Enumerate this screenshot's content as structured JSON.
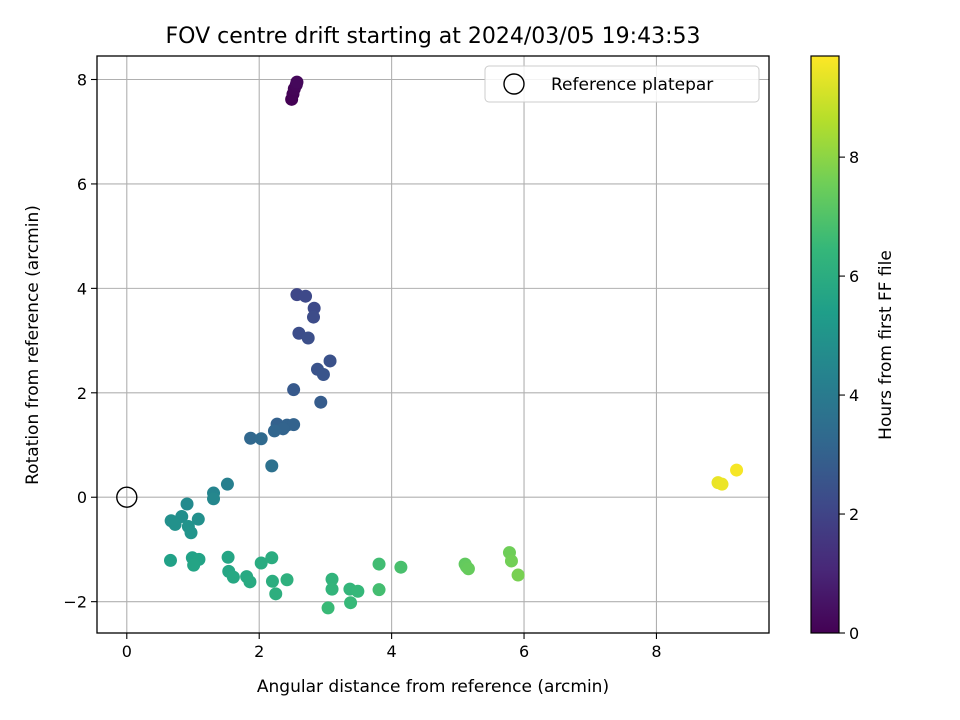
{
  "chart_data": {
    "type": "scatter",
    "title": "FOV centre drift starting at 2024/03/05 19:43:53",
    "xlabel": "Angular distance from reference (arcmin)",
    "ylabel": "Rotation from reference (arcmin)",
    "xlim": [
      -0.45,
      9.7
    ],
    "ylim": [
      -2.6,
      8.45
    ],
    "xticks": [
      0,
      2,
      4,
      6,
      8
    ],
    "yticks": [
      -2,
      0,
      2,
      4,
      6,
      8
    ],
    "xtick_labels": [
      "0",
      "2",
      "4",
      "6",
      "8"
    ],
    "ytick_labels": [
      "−2",
      "0",
      "2",
      "4",
      "6",
      "8"
    ],
    "grid": true,
    "legend": {
      "position": "top-right",
      "entries": [
        "Reference platepar"
      ]
    },
    "reference_point": {
      "x": 0,
      "y": 0,
      "label": "Reference platepar"
    },
    "colorbar": {
      "label": "Hours from first FF file",
      "range": [
        0,
        9.7
      ],
      "ticks": [
        0,
        2,
        4,
        6,
        8
      ],
      "tick_labels": [
        "0",
        "2",
        "4",
        "6",
        "8"
      ],
      "colormap": "viridis",
      "colors": [
        "#440154",
        "#482878",
        "#3e4989",
        "#31688e",
        "#26828e",
        "#1f9e89",
        "#35b779",
        "#6ece58",
        "#b5de2b",
        "#fde725"
      ]
    },
    "points": [
      {
        "x": 2.49,
        "y": 7.62,
        "h": 0.0
      },
      {
        "x": 2.51,
        "y": 7.72,
        "h": 0.05
      },
      {
        "x": 2.53,
        "y": 7.82,
        "h": 0.1
      },
      {
        "x": 2.56,
        "y": 7.9,
        "h": 0.15
      },
      {
        "x": 2.57,
        "y": 7.95,
        "h": 0.2
      },
      {
        "x": 2.57,
        "y": 3.88,
        "h": 2.1
      },
      {
        "x": 2.7,
        "y": 3.85,
        "h": 2.15
      },
      {
        "x": 2.83,
        "y": 3.62,
        "h": 2.2
      },
      {
        "x": 2.82,
        "y": 3.45,
        "h": 2.25
      },
      {
        "x": 2.6,
        "y": 3.14,
        "h": 2.3
      },
      {
        "x": 2.74,
        "y": 3.05,
        "h": 2.35
      },
      {
        "x": 3.07,
        "y": 2.61,
        "h": 2.45
      },
      {
        "x": 2.88,
        "y": 2.45,
        "h": 2.5
      },
      {
        "x": 2.97,
        "y": 2.35,
        "h": 2.55
      },
      {
        "x": 2.52,
        "y": 2.06,
        "h": 2.7
      },
      {
        "x": 2.93,
        "y": 1.82,
        "h": 2.8
      },
      {
        "x": 2.27,
        "y": 1.4,
        "h": 3.0
      },
      {
        "x": 2.42,
        "y": 1.38,
        "h": 3.05
      },
      {
        "x": 2.52,
        "y": 1.39,
        "h": 3.05
      },
      {
        "x": 2.36,
        "y": 1.31,
        "h": 3.1
      },
      {
        "x": 2.23,
        "y": 1.27,
        "h": 3.15
      },
      {
        "x": 1.87,
        "y": 1.13,
        "h": 3.25
      },
      {
        "x": 2.03,
        "y": 1.12,
        "h": 3.3
      },
      {
        "x": 2.19,
        "y": 0.6,
        "h": 3.6
      },
      {
        "x": 1.52,
        "y": 0.25,
        "h": 4.2
      },
      {
        "x": 1.31,
        "y": 0.08,
        "h": 4.4
      },
      {
        "x": 1.31,
        "y": -0.03,
        "h": 4.5
      },
      {
        "x": 0.91,
        "y": -0.13,
        "h": 4.6
      },
      {
        "x": 0.83,
        "y": -0.37,
        "h": 4.8
      },
      {
        "x": 1.08,
        "y": -0.42,
        "h": 4.85
      },
      {
        "x": 0.67,
        "y": -0.45,
        "h": 4.85
      },
      {
        "x": 0.73,
        "y": -0.52,
        "h": 4.9
      },
      {
        "x": 0.93,
        "y": -0.56,
        "h": 4.95
      },
      {
        "x": 0.97,
        "y": -0.68,
        "h": 5.0
      },
      {
        "x": 0.66,
        "y": -1.21,
        "h": 5.5
      },
      {
        "x": 0.99,
        "y": -1.16,
        "h": 5.55
      },
      {
        "x": 1.09,
        "y": -1.19,
        "h": 5.6
      },
      {
        "x": 1.01,
        "y": -1.3,
        "h": 5.65
      },
      {
        "x": 1.53,
        "y": -1.15,
        "h": 5.7
      },
      {
        "x": 1.54,
        "y": -1.42,
        "h": 5.75
      },
      {
        "x": 1.61,
        "y": -1.53,
        "h": 5.8
      },
      {
        "x": 1.81,
        "y": -1.52,
        "h": 5.85
      },
      {
        "x": 1.86,
        "y": -1.62,
        "h": 5.9
      },
      {
        "x": 2.03,
        "y": -1.26,
        "h": 5.95
      },
      {
        "x": 2.19,
        "y": -1.16,
        "h": 6.0
      },
      {
        "x": 2.2,
        "y": -1.61,
        "h": 6.05
      },
      {
        "x": 2.25,
        "y": -1.85,
        "h": 6.1
      },
      {
        "x": 2.42,
        "y": -1.58,
        "h": 6.15
      },
      {
        "x": 3.1,
        "y": -1.57,
        "h": 6.3
      },
      {
        "x": 3.1,
        "y": -1.76,
        "h": 6.35
      },
      {
        "x": 3.37,
        "y": -1.76,
        "h": 6.4
      },
      {
        "x": 3.49,
        "y": -1.8,
        "h": 6.45
      },
      {
        "x": 3.38,
        "y": -2.02,
        "h": 6.5
      },
      {
        "x": 3.04,
        "y": -2.12,
        "h": 6.55
      },
      {
        "x": 3.81,
        "y": -1.28,
        "h": 6.7
      },
      {
        "x": 3.81,
        "y": -1.77,
        "h": 6.75
      },
      {
        "x": 4.14,
        "y": -1.34,
        "h": 6.85
      },
      {
        "x": 5.11,
        "y": -1.28,
        "h": 7.3
      },
      {
        "x": 5.13,
        "y": -1.33,
        "h": 7.35
      },
      {
        "x": 5.16,
        "y": -1.37,
        "h": 7.4
      },
      {
        "x": 5.78,
        "y": -1.06,
        "h": 7.55
      },
      {
        "x": 5.81,
        "y": -1.22,
        "h": 7.6
      },
      {
        "x": 5.91,
        "y": -1.49,
        "h": 7.7
      },
      {
        "x": 8.93,
        "y": 0.28,
        "h": 9.4
      },
      {
        "x": 8.99,
        "y": 0.25,
        "h": 9.45
      },
      {
        "x": 9.21,
        "y": 0.52,
        "h": 9.6
      }
    ]
  }
}
